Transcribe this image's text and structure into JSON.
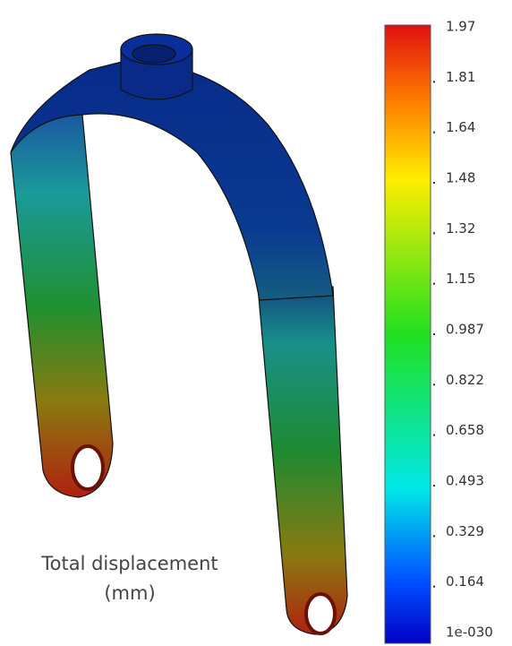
{
  "colorbar": {
    "labels": [
      "1.97",
      "1.81",
      "1.64",
      "1.48",
      "1.32",
      "1.15",
      "0.987",
      "0.822",
      "0.658",
      "0.493",
      "0.329",
      "0.164",
      "1e-030"
    ]
  },
  "caption": {
    "lines": [
      "Total displacement",
      "(mm)"
    ]
  }
}
